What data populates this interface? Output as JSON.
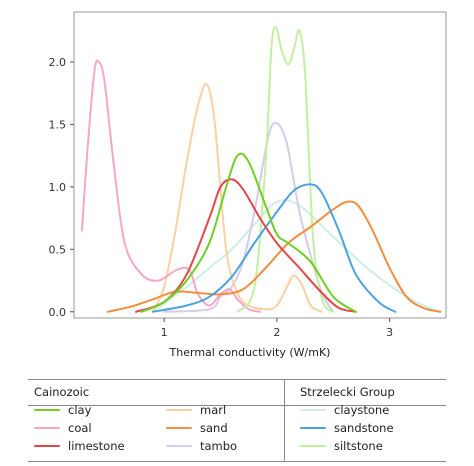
{
  "chart_data": {
    "type": "line",
    "title": "",
    "xlabel": "Thermal conductivity (W/mK)",
    "ylabel": "",
    "xlim": [
      0.2,
      3.5
    ],
    "ylim": [
      -0.05,
      2.4
    ],
    "x_ticks": [
      "1",
      "2",
      "3"
    ],
    "y_ticks": [
      "0.0",
      "0.5",
      "1.0",
      "1.5",
      "2.0"
    ],
    "grid": false,
    "legend_placement": "below",
    "series": [
      {
        "name": "clay",
        "group": "Cainozoic",
        "color": "#6fd021",
        "x": [
          0.8,
          1.0,
          1.2,
          1.4,
          1.55,
          1.65,
          1.75,
          1.9,
          2.0,
          2.1,
          2.3,
          2.5,
          2.7
        ],
        "y": [
          0.0,
          0.08,
          0.25,
          0.55,
          1.0,
          1.25,
          1.2,
          0.85,
          0.62,
          0.55,
          0.4,
          0.12,
          0.0
        ]
      },
      {
        "name": "coal",
        "group": "Cainozoic",
        "color": "#f6a7c8",
        "x": [
          0.27,
          0.32,
          0.38,
          0.42,
          0.47,
          0.55,
          0.65,
          0.8,
          0.95,
          1.1,
          1.2,
          1.25,
          1.3,
          1.4,
          1.5,
          1.58,
          1.65,
          1.75,
          1.85
        ],
        "y": [
          0.65,
          1.3,
          1.92,
          2.0,
          1.85,
          1.2,
          0.55,
          0.3,
          0.25,
          0.33,
          0.35,
          0.28,
          0.14,
          0.05,
          0.14,
          0.18,
          0.1,
          0.02,
          0.0
        ]
      },
      {
        "name": "limestone",
        "group": "Cainozoic",
        "color": "#e54649",
        "x": [
          0.75,
          1.0,
          1.2,
          1.4,
          1.5,
          1.6,
          1.7,
          1.85,
          2.0,
          2.2,
          2.4,
          2.55,
          2.7
        ],
        "y": [
          0.0,
          0.08,
          0.3,
          0.75,
          1.0,
          1.06,
          0.98,
          0.75,
          0.55,
          0.35,
          0.15,
          0.03,
          0.0
        ]
      },
      {
        "name": "marl",
        "group": "Cainozoic",
        "color": "#fdd0a2",
        "x": [
          0.9,
          1.0,
          1.1,
          1.2,
          1.3,
          1.38,
          1.45,
          1.55,
          1.65,
          1.75,
          1.9,
          2.0,
          2.1,
          2.15,
          2.22,
          2.3,
          2.4
        ],
        "y": [
          0.0,
          0.2,
          0.65,
          1.2,
          1.65,
          1.82,
          1.5,
          0.5,
          0.15,
          0.05,
          0.02,
          0.05,
          0.22,
          0.29,
          0.22,
          0.05,
          0.0
        ]
      },
      {
        "name": "sand",
        "group": "Cainozoic",
        "color": "#f28e3c",
        "x": [
          0.5,
          0.7,
          0.9,
          1.1,
          1.3,
          1.5,
          1.7,
          1.9,
          2.1,
          2.3,
          2.5,
          2.62,
          2.72,
          2.85,
          3.0,
          3.15,
          3.3,
          3.45
        ],
        "y": [
          0.0,
          0.04,
          0.1,
          0.16,
          0.15,
          0.14,
          0.18,
          0.35,
          0.55,
          0.68,
          0.82,
          0.88,
          0.85,
          0.65,
          0.35,
          0.12,
          0.03,
          0.0
        ]
      },
      {
        "name": "tambo",
        "group": "Cainozoic",
        "color": "#d9c9ea",
        "x": [
          1.0,
          1.4,
          1.5,
          1.6,
          1.7,
          1.8,
          1.9,
          1.95,
          2.0,
          2.05,
          2.1,
          2.2,
          2.3,
          2.4,
          2.5
        ],
        "y": [
          0.0,
          0.02,
          0.12,
          0.2,
          0.4,
          0.8,
          1.3,
          1.48,
          1.51,
          1.45,
          1.3,
          0.8,
          0.45,
          0.15,
          0.0
        ]
      },
      {
        "name": "claystone",
        "group": "Strzelecki Group",
        "color": "#cdeee4",
        "x": [
          0.9,
          1.2,
          1.4,
          1.6,
          1.8,
          2.0,
          2.2,
          2.5,
          2.8,
          3.1,
          3.3,
          3.45
        ],
        "y": [
          0.0,
          0.2,
          0.35,
          0.5,
          0.7,
          0.88,
          0.85,
          0.6,
          0.35,
          0.15,
          0.05,
          0.0
        ]
      },
      {
        "name": "sandstone",
        "group": "Strzelecki Group",
        "color": "#4aa3df",
        "x": [
          0.9,
          1.2,
          1.4,
          1.6,
          1.8,
          2.0,
          2.15,
          2.3,
          2.4,
          2.55,
          2.7,
          2.9,
          3.05
        ],
        "y": [
          0.0,
          0.05,
          0.12,
          0.28,
          0.55,
          0.8,
          0.97,
          1.02,
          0.95,
          0.65,
          0.3,
          0.08,
          0.0
        ]
      },
      {
        "name": "siltstone",
        "group": "Strzelecki Group",
        "color": "#c2f0a0",
        "x": [
          1.65,
          1.8,
          1.9,
          1.95,
          1.99,
          2.04,
          2.1,
          2.15,
          2.2,
          2.25,
          2.32,
          2.4,
          2.5
        ],
        "y": [
          0.0,
          0.2,
          1.2,
          2.1,
          2.28,
          2.1,
          1.98,
          2.1,
          2.25,
          1.9,
          0.6,
          0.1,
          0.0
        ]
      }
    ]
  },
  "legend": {
    "groups": [
      {
        "title": "Cainozoic"
      },
      {
        "title": "Strzelecki Group"
      }
    ]
  }
}
